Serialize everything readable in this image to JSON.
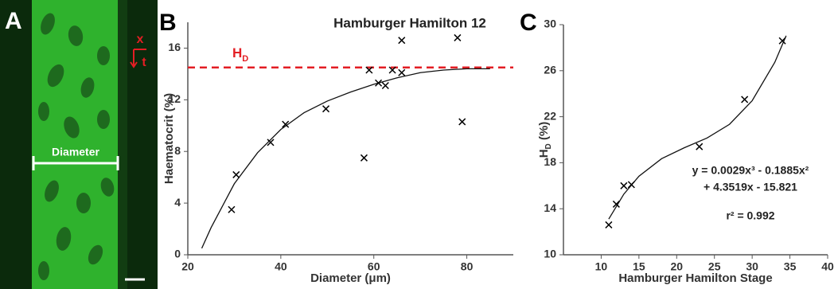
{
  "panel_a": {
    "label": "A",
    "measure": "Diameter",
    "axis_x": "x",
    "axis_t": "t"
  },
  "chart_data": [
    {
      "type": "scatter",
      "panel": "B",
      "title": "Hamburger Hamilton 12",
      "xlabel": "Diameter (μm)",
      "ylabel": "Haematocrit (%)",
      "x": [
        29.4,
        30.4,
        37.8,
        41.0,
        49.7,
        57.9,
        59.0,
        61.0,
        62.5,
        64.0,
        66.0,
        66.0,
        78.0,
        79.0
      ],
      "values": [
        3.5,
        6.2,
        8.7,
        10.1,
        11.3,
        7.5,
        14.3,
        13.3,
        13.1,
        14.3,
        14.1,
        16.6,
        16.8,
        10.3
      ],
      "color": "#000000",
      "fit": {
        "x": [
          23,
          25,
          30,
          35,
          40,
          45,
          50,
          55,
          60,
          65,
          70,
          75,
          80,
          85
        ],
        "values": [
          0.5,
          2.1,
          5.5,
          7.9,
          9.7,
          11.0,
          11.9,
          12.6,
          13.2,
          13.7,
          14.1,
          14.3,
          14.4,
          14.4
        ]
      },
      "reference_line": {
        "value": 14.5,
        "label": "H",
        "label_sub": "D",
        "color": "#e31e24"
      },
      "xlim": [
        20,
        90
      ],
      "ylim": [
        0,
        18
      ],
      "xticks": [
        20,
        40,
        60,
        80
      ],
      "yticks": [
        0,
        4,
        8,
        12,
        16
      ]
    },
    {
      "type": "scatter",
      "panel": "C",
      "xlabel": "Hamburger Hamilton Stage",
      "ylabel": [
        "H",
        "D",
        " (%)"
      ],
      "x": [
        11,
        12,
        13,
        14,
        23,
        29,
        34
      ],
      "values": [
        12.6,
        14.4,
        16.0,
        16.1,
        19.4,
        23.5,
        28.6
      ],
      "color": "#000000",
      "fit": {
        "x": [
          11,
          13,
          15,
          18,
          21,
          24,
          27,
          30,
          33,
          34.5
        ],
        "values": [
          13.1,
          15.27,
          16.83,
          18.35,
          19.3,
          20.14,
          21.34,
          23.39,
          26.73,
          29.04
        ]
      },
      "annotations": [
        "y = 0.0029x³ - 0.1885x²",
        "+ 4.3519x - 15.821",
        "r² = 0.992"
      ],
      "xlim": [
        5,
        40
      ],
      "ylim": [
        10,
        30
      ],
      "xticks": [
        10,
        15,
        20,
        25,
        30,
        35,
        40
      ],
      "yticks": [
        10,
        14,
        18,
        22,
        26,
        30
      ]
    }
  ]
}
